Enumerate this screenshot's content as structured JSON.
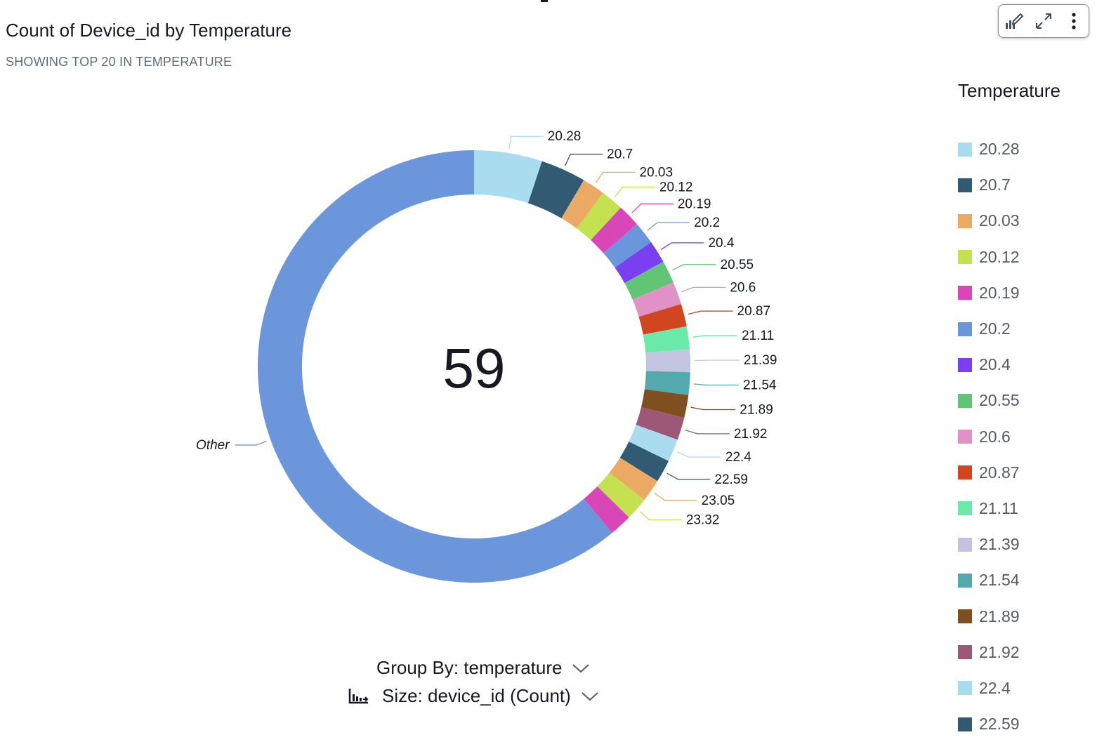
{
  "header": {
    "title": "Count of Device_id by Temperature",
    "subtitle": "SHOWING TOP 20 IN TEMPERATURE"
  },
  "toolbar": {
    "icons": [
      "format-visual-icon",
      "expand-icon",
      "more-options-icon"
    ]
  },
  "legend": {
    "title": "Temperature",
    "items": [
      {
        "label": "20.28",
        "color": "#a8dcee"
      },
      {
        "label": "20.7",
        "color": "#325a72"
      },
      {
        "label": "20.03",
        "color": "#eaaa63"
      },
      {
        "label": "20.12",
        "color": "#c4e150"
      },
      {
        "label": "20.19",
        "color": "#d846b7"
      },
      {
        "label": "20.2",
        "color": "#6c96dc"
      },
      {
        "label": "20.4",
        "color": "#7a3ff1"
      },
      {
        "label": "20.55",
        "color": "#62c575"
      },
      {
        "label": "20.6",
        "color": "#e191c6"
      },
      {
        "label": "20.87",
        "color": "#d24521"
      },
      {
        "label": "21.11",
        "color": "#6ae9a8"
      },
      {
        "label": "21.39",
        "color": "#c3c4e0"
      },
      {
        "label": "21.54",
        "color": "#54a9ad"
      },
      {
        "label": "21.89",
        "color": "#7f4f1f"
      },
      {
        "label": "21.92",
        "color": "#9d5878"
      },
      {
        "label": "22.4",
        "color": "#a8dcee"
      },
      {
        "label": "22.59",
        "color": "#325a72"
      }
    ]
  },
  "chart_data": {
    "type": "pie",
    "donut": true,
    "center_value": "59",
    "title": "Count of Device_id by Temperature",
    "subtitle": "SHOWING TOP 20 IN TEMPERATURE",
    "legend_title": "Temperature",
    "legend_position": "right",
    "slices": [
      {
        "label": "20.28",
        "value": 3,
        "color": "#a8dcee"
      },
      {
        "label": "20.7",
        "value": 2,
        "color": "#325a72"
      },
      {
        "label": "20.03",
        "value": 1,
        "color": "#eaaa63"
      },
      {
        "label": "20.12",
        "value": 1,
        "color": "#c4e150"
      },
      {
        "label": "20.19",
        "value": 1,
        "color": "#d846b7"
      },
      {
        "label": "20.2",
        "value": 1,
        "color": "#6c96dc"
      },
      {
        "label": "20.4",
        "value": 1,
        "color": "#7a3ff1"
      },
      {
        "label": "20.55",
        "value": 1,
        "color": "#62c575"
      },
      {
        "label": "20.6",
        "value": 1,
        "color": "#e191c6"
      },
      {
        "label": "20.87",
        "value": 1,
        "color": "#d24521"
      },
      {
        "label": "21.11",
        "value": 1,
        "color": "#6ae9a8"
      },
      {
        "label": "21.39",
        "value": 1,
        "color": "#c3c4e0"
      },
      {
        "label": "21.54",
        "value": 1,
        "color": "#54a9ad"
      },
      {
        "label": "21.89",
        "value": 1,
        "color": "#7f4f1f"
      },
      {
        "label": "21.92",
        "value": 1,
        "color": "#9d5878"
      },
      {
        "label": "22.4",
        "value": 1,
        "color": "#a8dcee"
      },
      {
        "label": "22.59",
        "value": 1,
        "color": "#325a72"
      },
      {
        "label": "23.05",
        "value": 1,
        "color": "#eaaa63"
      },
      {
        "label": "23.32",
        "value": 1,
        "color": "#c4e150"
      },
      {
        "label": "",
        "value": 1,
        "color": "#d846b7"
      },
      {
        "label": "Other",
        "value": 36,
        "color": "#6c96dc"
      }
    ]
  },
  "fieldwells": {
    "group_by": "Group By: temperature",
    "size": "Size: device_id (Count)"
  }
}
